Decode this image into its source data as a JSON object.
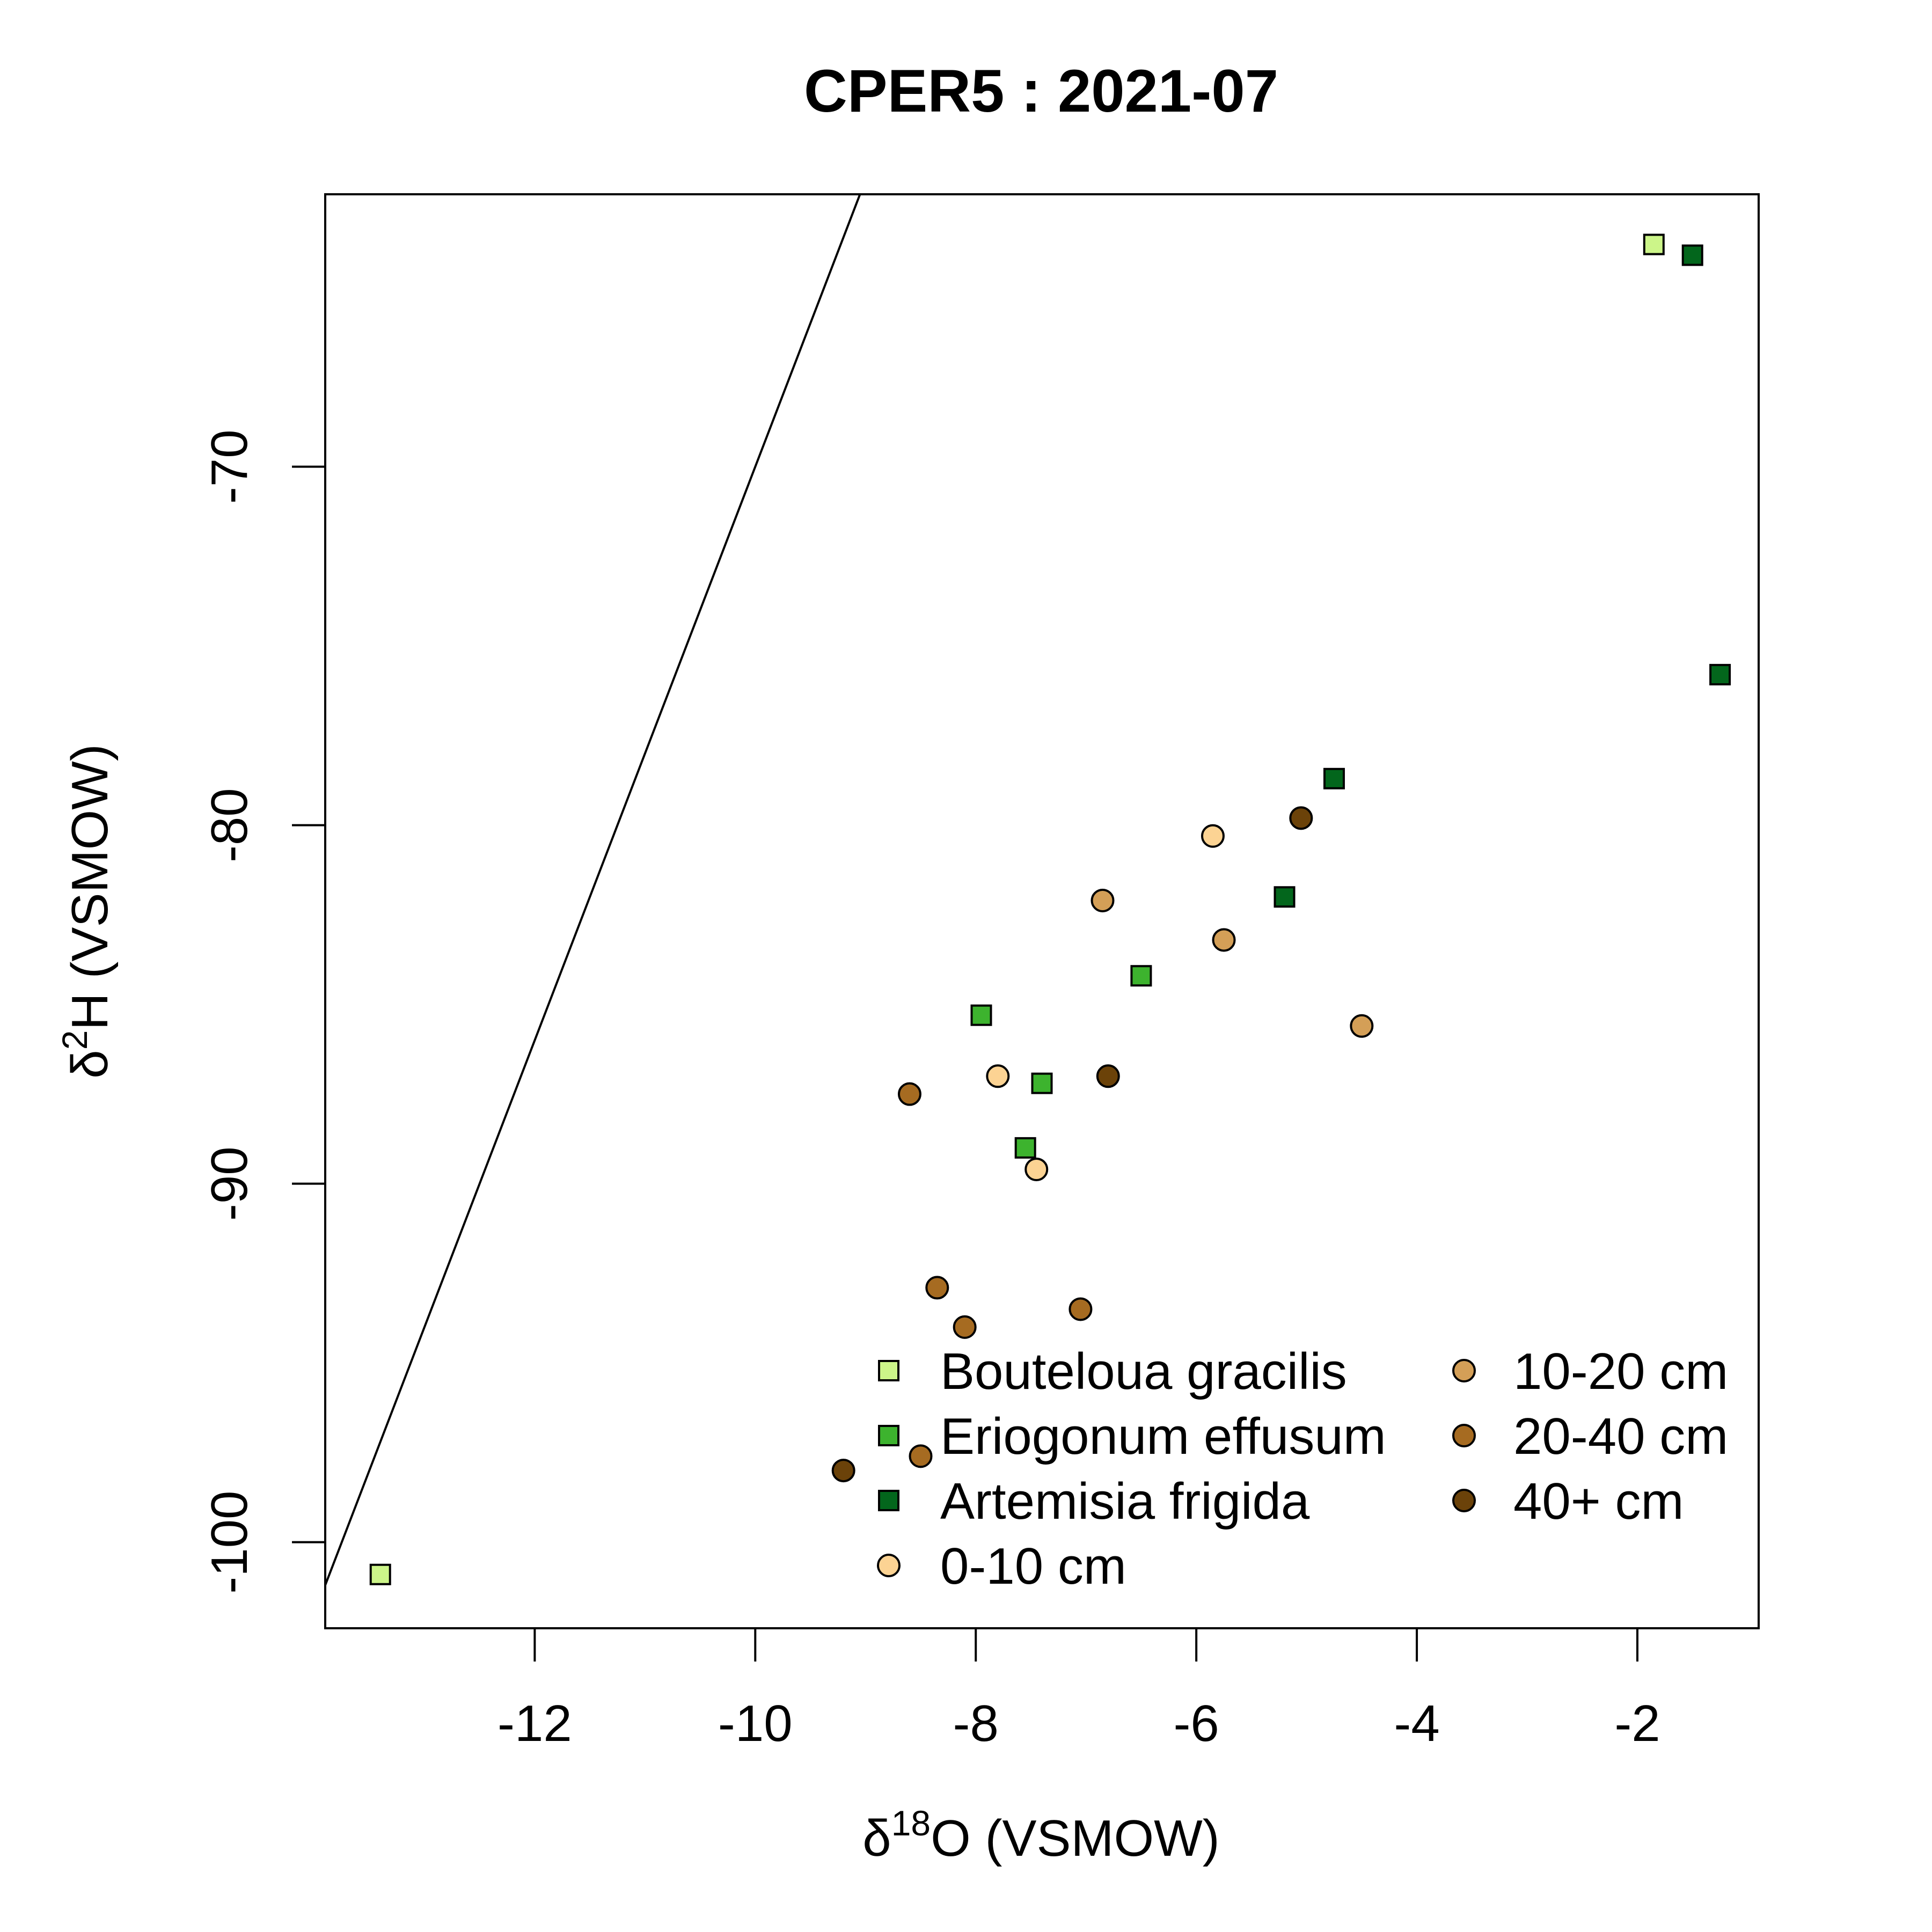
{
  "chart_data": {
    "type": "scatter",
    "title": "CPER5 : 2021-07",
    "xlabel": {
      "delta": "δ",
      "sup": "18",
      "rest": "O (VSMOW)"
    },
    "ylabel": {
      "delta": "δ",
      "sup": "2",
      "rest": "H (VSMOW)"
    },
    "xlim": [
      -13.9,
      -0.9
    ],
    "ylim": [
      -102.4,
      -62.4
    ],
    "xticks": [
      -12,
      -10,
      -8,
      -6,
      -4,
      -2
    ],
    "yticks": [
      -100,
      -90,
      -80,
      -70
    ],
    "reference_line": {
      "slope": 8,
      "intercept": 10
    },
    "legend_position": "bottom-right",
    "grid": false,
    "series": [
      {
        "name": "Bouteloua gracilis",
        "shape": "square",
        "color": "#ccf589",
        "points": [
          [
            -1.85,
            -63.8
          ],
          [
            -13.4,
            -100.9
          ]
        ]
      },
      {
        "name": "Eriogonum effusum",
        "shape": "square",
        "color": "#3db32e",
        "points": [
          [
            -7.95,
            -85.3
          ],
          [
            -6.5,
            -84.2
          ],
          [
            -7.4,
            -87.2
          ],
          [
            -7.55,
            -89.0
          ]
        ]
      },
      {
        "name": "Artemisia frigida",
        "shape": "square",
        "color": "#03661c",
        "points": [
          [
            -1.5,
            -64.1
          ],
          [
            -1.25,
            -75.8
          ],
          [
            -4.75,
            -78.7
          ],
          [
            -5.2,
            -82.0
          ]
        ]
      },
      {
        "name": "0-10 cm",
        "shape": "circle",
        "color": "#fcd393",
        "points": [
          [
            -5.85,
            -80.3
          ],
          [
            -7.8,
            -87.0
          ],
          [
            -7.45,
            -89.6
          ]
        ]
      },
      {
        "name": "10-20 cm",
        "shape": "circle",
        "color": "#d49f57",
        "points": [
          [
            -6.85,
            -82.1
          ],
          [
            -5.75,
            -83.2
          ],
          [
            -4.5,
            -85.6
          ]
        ]
      },
      {
        "name": "20-40 cm",
        "shape": "circle",
        "color": "#a66b21",
        "points": [
          [
            -8.6,
            -87.5
          ],
          [
            -8.35,
            -92.9
          ],
          [
            -8.1,
            -94.0
          ],
          [
            -7.05,
            -93.5
          ],
          [
            -8.5,
            -97.6
          ]
        ]
      },
      {
        "name": "40+ cm",
        "shape": "circle",
        "color": "#6b4209",
        "points": [
          [
            -5.05,
            -79.8
          ],
          [
            -6.8,
            -87.0
          ],
          [
            -9.2,
            -98.0
          ]
        ]
      }
    ]
  }
}
